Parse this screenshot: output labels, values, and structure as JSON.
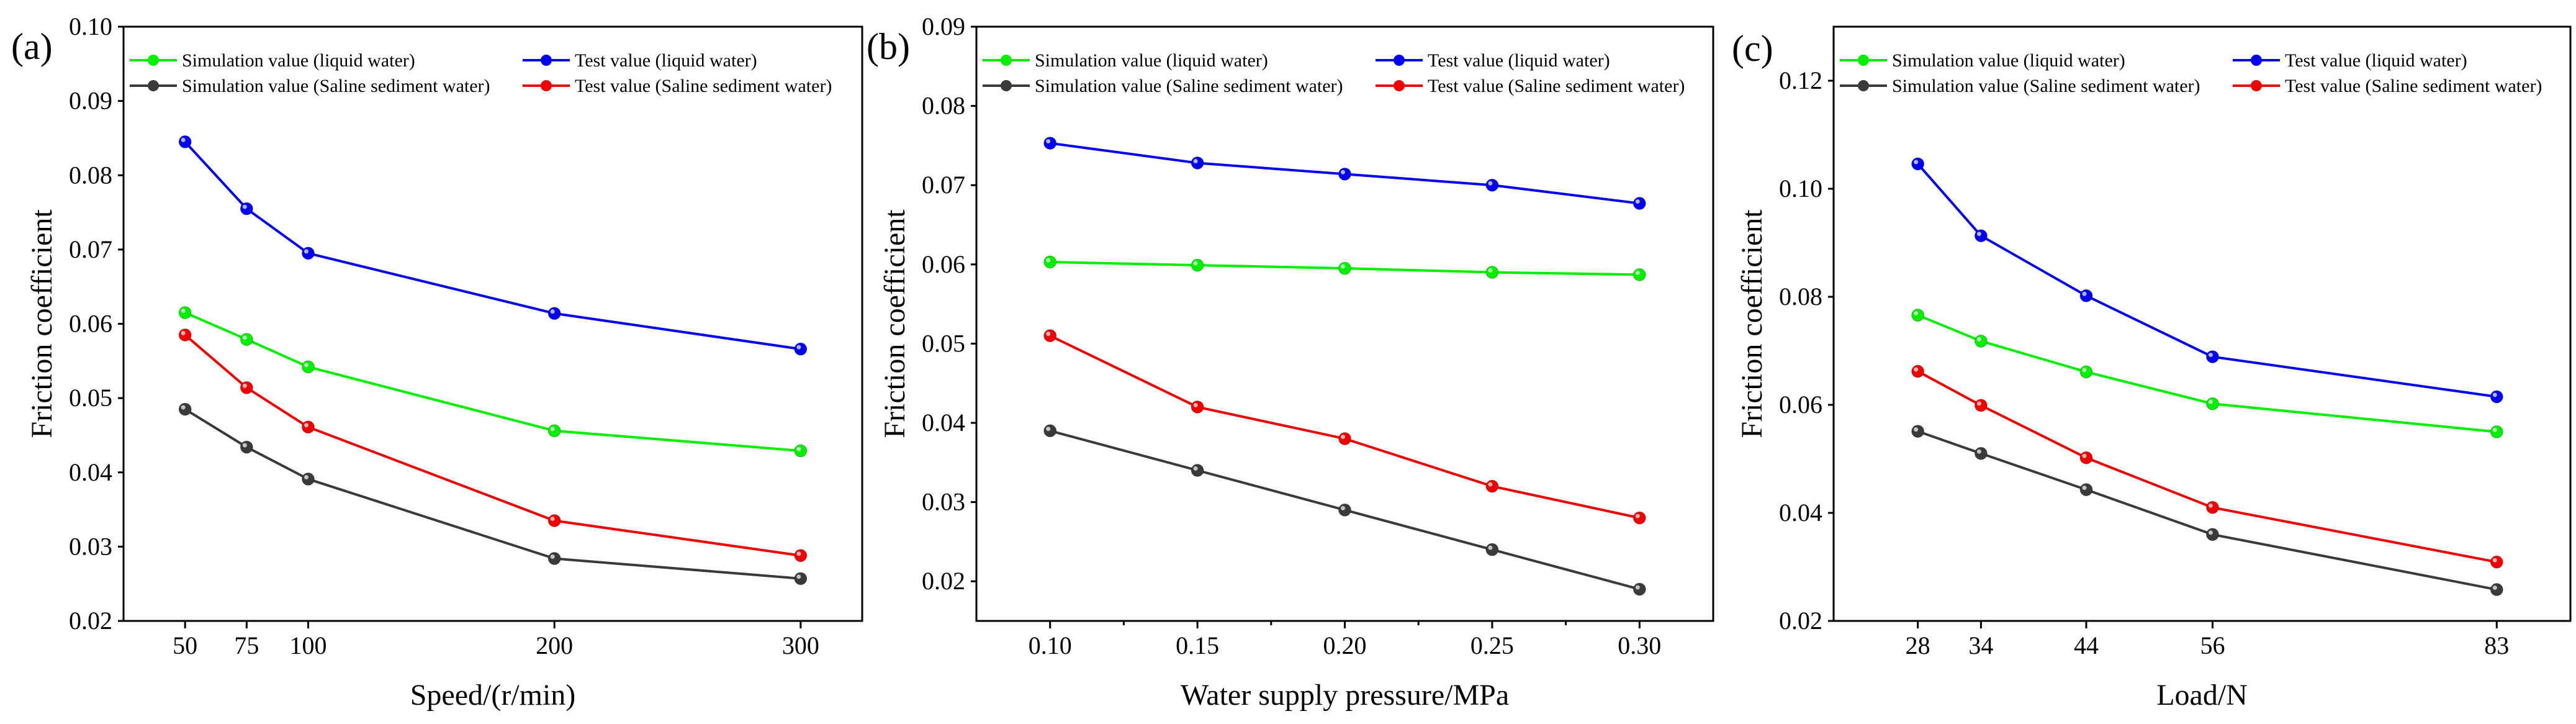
{
  "series_styles": [
    {
      "key": "sim_liquid",
      "color": "#00ee00"
    },
    {
      "key": "test_liquid",
      "color": "#0000ee"
    },
    {
      "key": "sim_saline",
      "color": "#3a3a3a"
    },
    {
      "key": "test_saline",
      "color": "#ee0000"
    }
  ],
  "chart_data": [
    {
      "type": "line",
      "panel_label": "(a)",
      "xlabel": "Speed/(r/min)",
      "ylabel": "Friction coefficient",
      "x": [
        50,
        75,
        100,
        200,
        300
      ],
      "x_tick_labels": [
        "50",
        "75",
        "100",
        "200",
        "300"
      ],
      "xlim": [
        25,
        325
      ],
      "ylim": [
        0.02,
        0.1
      ],
      "y_ticks": [
        0.02,
        0.03,
        0.04,
        0.05,
        0.06,
        0.07,
        0.08,
        0.09,
        0.1
      ],
      "y_tick_labels": [
        "0.02",
        "0.03",
        "0.04",
        "0.05",
        "0.06",
        "0.07",
        "0.08",
        "0.09",
        "0.10"
      ],
      "grid": false,
      "legend_position": "top",
      "series": [
        {
          "name": "Simulation value (liquid water)",
          "values": [
            0.0615,
            0.0579,
            0.0542,
            0.0456,
            0.0429
          ]
        },
        {
          "name": "Test value (liquid water)",
          "values": [
            0.0845,
            0.0755,
            0.0695,
            0.0614,
            0.0566
          ]
        },
        {
          "name": "Simulation value (Saline sediment water)",
          "values": [
            0.0485,
            0.0434,
            0.0391,
            0.0284,
            0.0257
          ]
        },
        {
          "name": "Test value (Saline sediment water)",
          "values": [
            0.0585,
            0.0514,
            0.0461,
            0.0335,
            0.0288
          ]
        }
      ]
    },
    {
      "type": "line",
      "panel_label": "(b)",
      "xlabel": "Water supply pressure/MPa",
      "ylabel": "Friction coefficient",
      "x": [
        0.1,
        0.15,
        0.2,
        0.25,
        0.3
      ],
      "x_tick_labels": [
        "0.10",
        "0.15",
        "0.20",
        "0.25",
        "0.30"
      ],
      "xlim": [
        0.075,
        0.325
      ],
      "ylim": [
        0.015,
        0.09
      ],
      "y_ticks": [
        0.02,
        0.03,
        0.04,
        0.05,
        0.06,
        0.07,
        0.08,
        0.09
      ],
      "y_tick_labels": [
        "0.02",
        "0.03",
        "0.04",
        "0.05",
        "0.06",
        "0.07",
        "0.08",
        "0.09"
      ],
      "grid": false,
      "legend_position": "top",
      "series": [
        {
          "name": "Simulation value (liquid water)",
          "values": [
            0.0603,
            0.0599,
            0.0595,
            0.059,
            0.0587
          ]
        },
        {
          "name": "Test value (liquid water)",
          "values": [
            0.0753,
            0.0728,
            0.0714,
            0.07,
            0.0677
          ]
        },
        {
          "name": "Simulation value (Saline sediment water)",
          "values": [
            0.039,
            0.034,
            0.029,
            0.024,
            0.019
          ]
        },
        {
          "name": "Test value (Saline sediment water)",
          "values": [
            0.051,
            0.042,
            0.038,
            0.032,
            0.028
          ]
        }
      ]
    },
    {
      "type": "line",
      "panel_label": "(c)",
      "xlabel": "Load/N",
      "ylabel": "Friction coefficient",
      "x": [
        28,
        34,
        44,
        56,
        83
      ],
      "x_tick_labels": [
        "28",
        "34",
        "44",
        "56",
        "83"
      ],
      "xlim": [
        20,
        90
      ],
      "ylim": [
        0.02,
        0.13
      ],
      "y_ticks": [
        0.02,
        0.04,
        0.06,
        0.08,
        0.1,
        0.12
      ],
      "y_tick_labels": [
        "0.02",
        "0.04",
        "0.06",
        "0.08",
        "0.10",
        "0.12"
      ],
      "grid": false,
      "legend_position": "top",
      "series": [
        {
          "name": "Simulation value (liquid water)",
          "values": [
            0.0766,
            0.0718,
            0.0661,
            0.0602,
            0.055
          ]
        },
        {
          "name": "Test value (liquid water)",
          "values": [
            0.1046,
            0.0913,
            0.0802,
            0.0689,
            0.0615
          ]
        },
        {
          "name": "Simulation value (Saline sediment water)",
          "values": [
            0.0551,
            0.051,
            0.0443,
            0.036,
            0.0258
          ]
        },
        {
          "name": "Test value (Saline sediment water)",
          "values": [
            0.0662,
            0.0599,
            0.0502,
            0.041,
            0.0309
          ]
        }
      ]
    }
  ]
}
